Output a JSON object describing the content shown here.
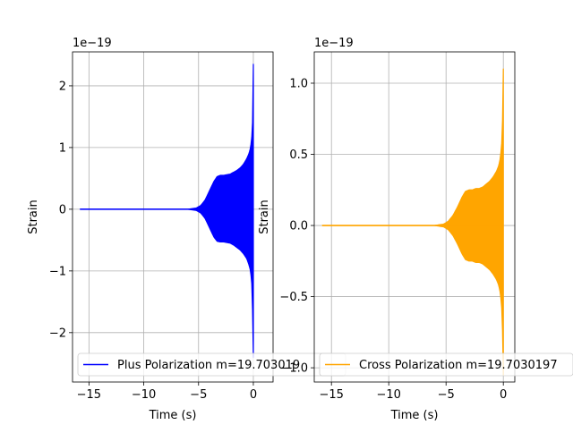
{
  "chart_data": [
    {
      "type": "line",
      "xlabel": "Time (s)",
      "ylabel": "Strain",
      "offset_label": "1e−19",
      "xlim": [
        -16.5,
        1.8
      ],
      "ylim": [
        -2.8,
        2.55
      ],
      "x_ticks": [
        -15,
        -10,
        -5,
        0
      ],
      "x_tick_labels": [
        "−15",
        "−10",
        "−5",
        "0"
      ],
      "y_ticks": [
        -2,
        -1,
        0,
        1,
        2
      ],
      "y_tick_labels": [
        "−2",
        "−1",
        "0",
        "1",
        "2"
      ],
      "grid": true,
      "legend_position": "lower-left",
      "series": [
        {
          "name": "Plus Polarization m=19.703019",
          "color": "#0000ff",
          "x_start": -15.8,
          "x_end": 0.0,
          "envelope_t": [
            -15.8,
            -6.0,
            -5.2,
            -4.8,
            -4.4,
            -4.0,
            -3.6,
            -3.3,
            -3.0,
            -2.7,
            -2.4,
            -2.1,
            -1.8,
            -1.5,
            -1.2,
            -0.9,
            -0.6,
            -0.4,
            -0.25,
            -0.12,
            -0.05,
            0.0
          ],
          "envelope_upper": [
            0.0,
            0.0,
            0.02,
            0.06,
            0.15,
            0.3,
            0.45,
            0.53,
            0.55,
            0.55,
            0.56,
            0.57,
            0.6,
            0.63,
            0.67,
            0.73,
            0.82,
            0.9,
            1.0,
            1.2,
            1.5,
            2.35
          ],
          "envelope_lower": [
            0.0,
            0.0,
            -0.02,
            -0.06,
            -0.15,
            -0.3,
            -0.45,
            -0.52,
            -0.53,
            -0.53,
            -0.54,
            -0.55,
            -0.58,
            -0.62,
            -0.66,
            -0.72,
            -0.8,
            -0.9,
            -1.0,
            -1.25,
            -1.8,
            -2.4
          ]
        }
      ]
    },
    {
      "type": "line",
      "xlabel": "Time (s)",
      "ylabel": "Strain",
      "offset_label": "1e−19",
      "xlim": [
        -16.5,
        1.0
      ],
      "ylim": [
        -1.1,
        1.22
      ],
      "x_ticks": [
        -15,
        -10,
        -5,
        0
      ],
      "x_tick_labels": [
        "−15",
        "−10",
        "−5",
        "0"
      ],
      "y_ticks": [
        -1.0,
        -0.5,
        0.0,
        0.5,
        1.0
      ],
      "y_tick_labels": [
        "−1.0",
        "−0.5",
        "0.0",
        "0.5",
        "1.0"
      ],
      "grid": true,
      "legend_position": "lower-left",
      "series": [
        {
          "name": "Cross Polarization m=19.7030197",
          "color": "#ffa500",
          "x_start": -15.8,
          "x_end": 0.0,
          "envelope_t": [
            -15.8,
            -6.0,
            -5.2,
            -4.8,
            -4.4,
            -4.0,
            -3.6,
            -3.3,
            -3.0,
            -2.7,
            -2.4,
            -2.1,
            -1.8,
            -1.5,
            -1.2,
            -0.9,
            -0.6,
            -0.4,
            -0.25,
            -0.12,
            -0.05,
            0.0
          ],
          "envelope_upper": [
            0.0,
            0.0,
            0.01,
            0.03,
            0.07,
            0.13,
            0.2,
            0.24,
            0.25,
            0.25,
            0.26,
            0.26,
            0.27,
            0.29,
            0.31,
            0.34,
            0.38,
            0.42,
            0.48,
            0.6,
            0.8,
            1.1
          ],
          "envelope_lower": [
            0.0,
            0.0,
            -0.01,
            -0.03,
            -0.07,
            -0.13,
            -0.2,
            -0.24,
            -0.25,
            -0.25,
            -0.26,
            -0.26,
            -0.27,
            -0.29,
            -0.31,
            -0.34,
            -0.38,
            -0.42,
            -0.48,
            -0.6,
            -0.8,
            -1.05
          ]
        }
      ]
    }
  ]
}
